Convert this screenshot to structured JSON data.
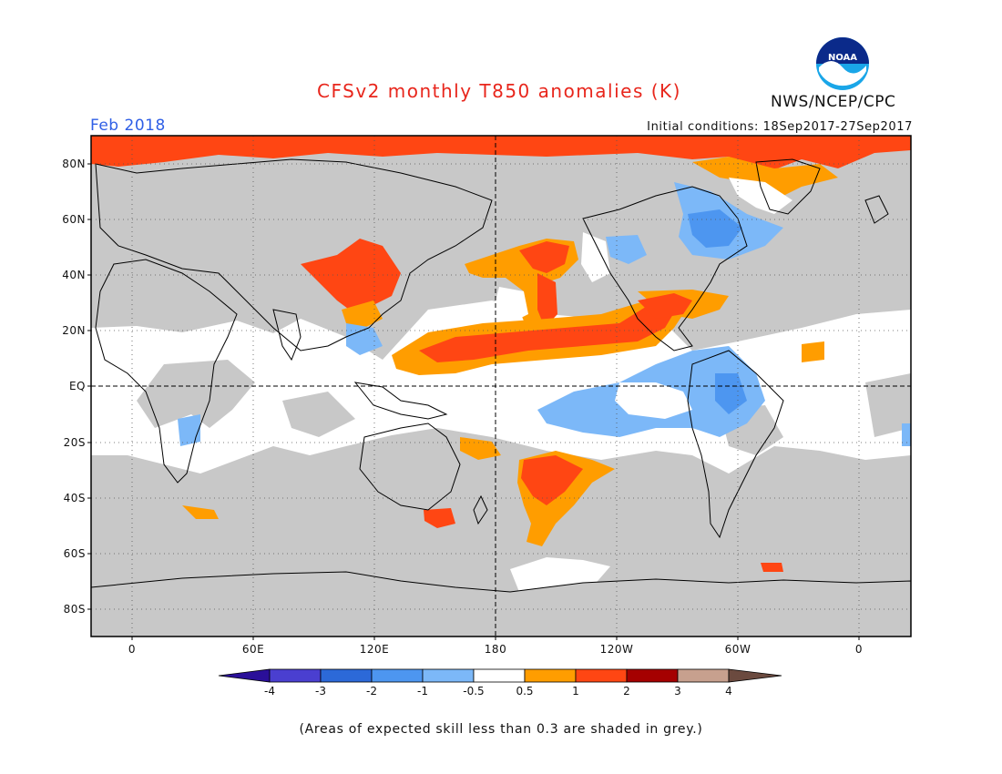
{
  "header": {
    "title": "CFSv2 monthly T850 anomalies (K)",
    "valid_date": "Feb 2018",
    "initial_conditions": "Initial conditions: 18Sep2017-27Sep2017",
    "agency": "NWS/NCEP/CPC",
    "logo_text": "NOAA"
  },
  "map": {
    "projection": "equirectangular",
    "latitude_labels": [
      "80N",
      "60N",
      "40N",
      "20N",
      "EQ",
      "20S",
      "40S",
      "60S",
      "80S"
    ],
    "longitude_labels": [
      "0",
      "60E",
      "120E",
      "180",
      "120W",
      "60W",
      "0"
    ],
    "reference_lines": [
      "Equator",
      "180 meridian"
    ],
    "grey_shading": "skill < 0.3",
    "colors": {
      "grey": "#c8c8c8",
      "land_outline": "#000000"
    }
  },
  "colorbar": {
    "tick_labels": [
      "-4",
      "-3",
      "-2",
      "-1",
      "-0.5",
      "0.5",
      "1",
      "2",
      "3",
      "4"
    ],
    "colors": [
      "#2a0f99",
      "#4a3fd0",
      "#2c69d8",
      "#4d96f0",
      "#7cb8f8",
      "#ffffff",
      "#ff9d00",
      "#ff4613",
      "#a50000",
      "#c7a08e",
      "#6b4a3f"
    ]
  },
  "footnote": "(Areas of expected skill less than 0.3 are shaded in grey.)"
}
